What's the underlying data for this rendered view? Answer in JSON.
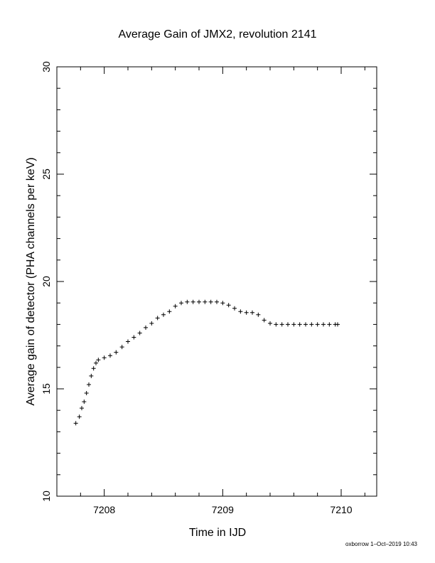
{
  "chart_data": {
    "type": "scatter",
    "title": "Average Gain of JMX2, revolution 2141",
    "xlabel": "Time in IJD",
    "ylabel": "Average gain of detector (PHA channels per keV)",
    "footer": "oxborrow  1–Oct–2019 10:43",
    "xlim": [
      7207.6,
      7210.3
    ],
    "ylim": [
      10,
      30
    ],
    "x_major_ticks": [
      7208,
      7209,
      7210
    ],
    "x_tick_labels": [
      "7208",
      "7209",
      "7210"
    ],
    "y_major_ticks": [
      10,
      15,
      20,
      25,
      30
    ],
    "y_tick_labels": [
      "10",
      "15",
      "20",
      "25",
      "30"
    ],
    "grid": false,
    "marker": "+",
    "color": "#000000",
    "x": [
      7207.76,
      7207.79,
      7207.81,
      7207.83,
      7207.85,
      7207.87,
      7207.89,
      7207.91,
      7207.93,
      7207.95,
      7208.0,
      7208.05,
      7208.1,
      7208.15,
      7208.2,
      7208.25,
      7208.3,
      7208.35,
      7208.4,
      7208.45,
      7208.5,
      7208.55,
      7208.6,
      7208.65,
      7208.7,
      7208.75,
      7208.8,
      7208.85,
      7208.9,
      7208.95,
      7209.0,
      7209.05,
      7209.1,
      7209.15,
      7209.2,
      7209.25,
      7209.3,
      7209.35,
      7209.4,
      7209.45,
      7209.5,
      7209.55,
      7209.6,
      7209.65,
      7209.7,
      7209.75,
      7209.8,
      7209.85,
      7209.9,
      7209.95,
      7209.97
    ],
    "y": [
      13.4,
      13.7,
      14.1,
      14.4,
      14.8,
      15.2,
      15.6,
      15.95,
      16.2,
      16.35,
      16.45,
      16.55,
      16.7,
      16.95,
      17.2,
      17.4,
      17.6,
      17.85,
      18.05,
      18.3,
      18.45,
      18.6,
      18.85,
      19.0,
      19.05,
      19.05,
      19.05,
      19.05,
      19.05,
      19.05,
      19.0,
      18.9,
      18.75,
      18.6,
      18.55,
      18.55,
      18.45,
      18.2,
      18.05,
      18.0,
      18.0,
      18.0,
      18.0,
      18.0,
      18.0,
      18.0,
      18.0,
      18.0,
      18.0,
      18.0,
      18.0
    ]
  }
}
